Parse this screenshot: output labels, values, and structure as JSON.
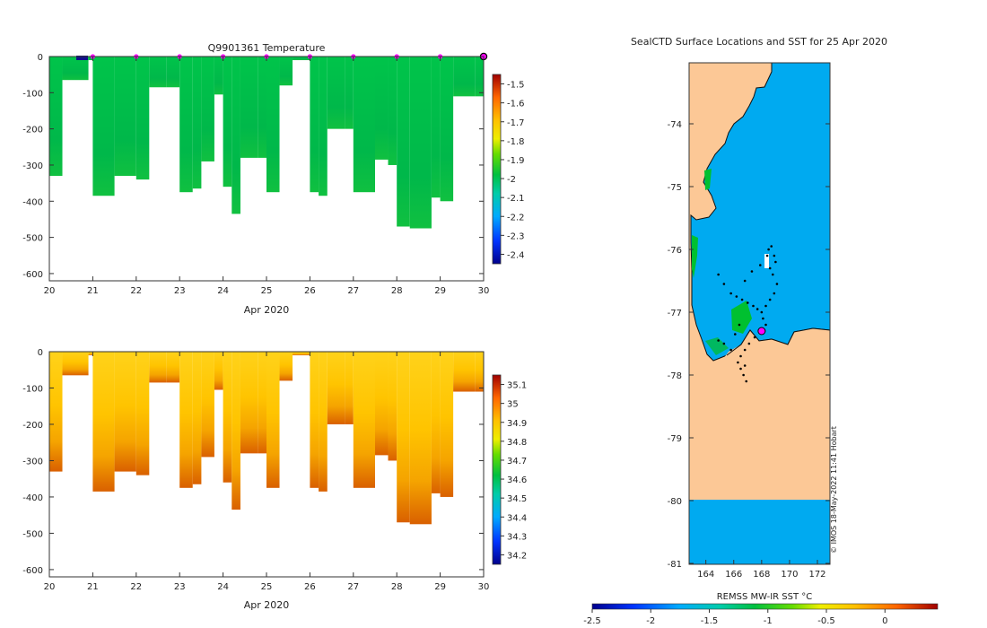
{
  "chart_data": [
    {
      "id": "temperature_section",
      "type": "heatmap",
      "title": "Q9901361  Temperature",
      "xlabel": "Apr 2020",
      "ylabel": "",
      "xlim": [
        20,
        30
      ],
      "ylim": [
        -620,
        0
      ],
      "x_ticks": [
        "20",
        "21",
        "22",
        "23",
        "24",
        "25",
        "26",
        "27",
        "28",
        "29",
        "30"
      ],
      "y_ticks": [
        "0",
        "-100",
        "-200",
        "-300",
        "-400",
        "-500",
        "-600"
      ],
      "colorbar": {
        "range": [
          -2.45,
          -1.45
        ],
        "ticks": [
          "-1.5",
          "-1.6",
          "-1.7",
          "-1.8",
          "-1.9",
          "-2",
          "-2.1",
          "-2.2",
          "-2.3",
          "-2.4"
        ]
      },
      "surface_markers_day": [
        21,
        22,
        23,
        24,
        25,
        26,
        27,
        28,
        29
      ],
      "profiles": [
        {
          "day": 20.0,
          "max_depth": -330
        },
        {
          "day": 20.3,
          "max_depth": -65
        },
        {
          "day": 20.9,
          "max_depth": -10
        },
        {
          "day": 21.0,
          "max_depth": -385
        },
        {
          "day": 21.5,
          "max_depth": -330
        },
        {
          "day": 22.0,
          "max_depth": -340
        },
        {
          "day": 22.3,
          "max_depth": -85
        },
        {
          "day": 22.7,
          "max_depth": -85
        },
        {
          "day": 23.0,
          "max_depth": -375
        },
        {
          "day": 23.3,
          "max_depth": -365
        },
        {
          "day": 23.5,
          "max_depth": -290
        },
        {
          "day": 23.8,
          "max_depth": -105
        },
        {
          "day": 24.0,
          "max_depth": -360
        },
        {
          "day": 24.2,
          "max_depth": -435
        },
        {
          "day": 24.4,
          "max_depth": -280
        },
        {
          "day": 24.8,
          "max_depth": -280
        },
        {
          "day": 25.0,
          "max_depth": -375
        },
        {
          "day": 25.3,
          "max_depth": -80
        },
        {
          "day": 25.6,
          "max_depth": -10
        },
        {
          "day": 26.0,
          "max_depth": -375
        },
        {
          "day": 26.2,
          "max_depth": -385
        },
        {
          "day": 26.4,
          "max_depth": -200
        },
        {
          "day": 26.8,
          "max_depth": -200
        },
        {
          "day": 27.0,
          "max_depth": -375
        },
        {
          "day": 27.5,
          "max_depth": -285
        },
        {
          "day": 27.8,
          "max_depth": -300
        },
        {
          "day": 28.0,
          "max_depth": -470
        },
        {
          "day": 28.3,
          "max_depth": -475
        },
        {
          "day": 28.8,
          "max_depth": -390
        },
        {
          "day": 29.0,
          "max_depth": -400
        },
        {
          "day": 29.3,
          "max_depth": -110
        },
        {
          "day": 29.8,
          "max_depth": -110
        },
        {
          "day": 30.0,
          "max_depth": -320
        }
      ]
    },
    {
      "id": "salinity_section",
      "type": "heatmap",
      "title": "",
      "xlabel": "Apr 2020",
      "ylabel": "",
      "xlim": [
        20,
        30
      ],
      "ylim": [
        -620,
        0
      ],
      "x_ticks": [
        "20",
        "21",
        "22",
        "23",
        "24",
        "25",
        "26",
        "27",
        "28",
        "29",
        "30"
      ],
      "y_ticks": [
        "0",
        "-100",
        "-200",
        "-300",
        "-400",
        "-500",
        "-600"
      ],
      "colorbar": {
        "range": [
          34.15,
          35.15
        ],
        "ticks": [
          "35.1",
          "35",
          "34.9",
          "34.8",
          "34.7",
          "34.6",
          "34.5",
          "34.4",
          "34.3",
          "34.2"
        ]
      }
    },
    {
      "id": "sst_map",
      "type": "heatmap",
      "title": "SealCTD Surface Locations and SST for 25 Apr 2020",
      "xlabel": "",
      "ylabel": "",
      "xlim": [
        162.8,
        172.9
      ],
      "ylim": [
        -81,
        -73.0
      ],
      "x_ticks": [
        "164",
        "166",
        "168",
        "170",
        "172"
      ],
      "y_ticks": [
        "-74",
        "-75",
        "-76",
        "-77",
        "-78",
        "-79",
        "-80",
        "-81"
      ],
      "colorbar": {
        "label": "REMSS MW-IR SST °C",
        "range": [
          -2.5,
          0.45
        ],
        "ticks": [
          "-2.5",
          "-2",
          "-1.5",
          "-1",
          "-0.5",
          "0"
        ]
      },
      "credit": "© IMOS 18-May-2022 11:41 Hobart",
      "current_position": [
        168.0,
        -77.3
      ],
      "track_points": [
        [
          168.5,
          -76.0
        ],
        [
          168.7,
          -75.95
        ],
        [
          168.9,
          -76.1
        ],
        [
          169.0,
          -76.2
        ],
        [
          168.6,
          -76.3
        ],
        [
          168.4,
          -76.1
        ],
        [
          168.8,
          -76.4
        ],
        [
          169.1,
          -76.55
        ],
        [
          168.9,
          -76.7
        ],
        [
          168.6,
          -76.8
        ],
        [
          168.3,
          -76.9
        ],
        [
          168.0,
          -77.0
        ],
        [
          167.7,
          -76.95
        ],
        [
          167.4,
          -76.9
        ],
        [
          167.0,
          -76.85
        ],
        [
          166.6,
          -76.8
        ],
        [
          166.2,
          -76.75
        ],
        [
          165.8,
          -76.7
        ],
        [
          165.3,
          -76.55
        ],
        [
          164.9,
          -76.4
        ],
        [
          166.8,
          -76.5
        ],
        [
          167.3,
          -76.35
        ],
        [
          167.9,
          -76.25
        ],
        [
          168.1,
          -77.1
        ],
        [
          168.3,
          -77.2
        ],
        [
          168.2,
          -77.3
        ],
        [
          167.5,
          -77.4
        ],
        [
          167.1,
          -77.5
        ],
        [
          166.8,
          -77.6
        ],
        [
          166.5,
          -77.7
        ],
        [
          166.3,
          -77.8
        ],
        [
          166.5,
          -77.9
        ],
        [
          166.7,
          -78.0
        ],
        [
          166.9,
          -78.1
        ],
        [
          166.8,
          -77.85
        ],
        [
          165.8,
          -77.6
        ],
        [
          165.3,
          -77.5
        ],
        [
          164.9,
          -77.45
        ],
        [
          166.4,
          -77.2
        ],
        [
          166.1,
          -77.35
        ]
      ]
    }
  ]
}
